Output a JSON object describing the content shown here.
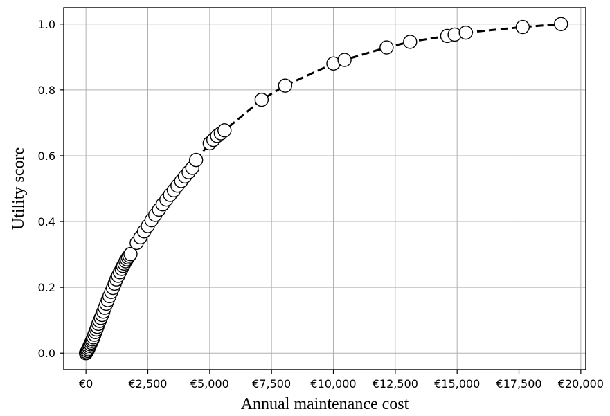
{
  "chart_data": {
    "type": "scatter",
    "title": "",
    "xlabel": "Annual maintenance cost",
    "ylabel": "Utility score",
    "xlim": [
      -900,
      20200
    ],
    "ylim": [
      -0.05,
      1.05
    ],
    "grid": true,
    "legend": "none",
    "x_ticks": [
      {
        "value": 0,
        "label": "€0"
      },
      {
        "value": 2500,
        "label": "€2,500"
      },
      {
        "value": 5000,
        "label": "€5,000"
      },
      {
        "value": 7500,
        "label": "€7,500"
      },
      {
        "value": 10000,
        "label": "€10,000"
      },
      {
        "value": 12500,
        "label": "€12,500"
      },
      {
        "value": 15000,
        "label": "€15,000"
      },
      {
        "value": 17500,
        "label": "€17,500"
      },
      {
        "value": 20000,
        "label": "€20,000"
      }
    ],
    "y_ticks": [
      {
        "value": 0.0,
        "label": "0.0"
      },
      {
        "value": 0.2,
        "label": "0.2"
      },
      {
        "value": 0.4,
        "label": "0.4"
      },
      {
        "value": 0.6,
        "label": "0.6"
      },
      {
        "value": 0.8,
        "label": "0.8"
      },
      {
        "value": 1.0,
        "label": "1.0"
      }
    ],
    "series": [
      {
        "marker": "circle",
        "marker_face_color": "#ffffff",
        "marker_edge_color": "#000000",
        "line_style": "dashed",
        "line_color": "#000000",
        "x": [
          0,
          30,
          60,
          90,
          120,
          150,
          180,
          210,
          240,
          270,
          300,
          340,
          380,
          420,
          460,
          500,
          550,
          600,
          650,
          700,
          760,
          820,
          880,
          950,
          1020,
          1090,
          1160,
          1230,
          1300,
          1370,
          1440,
          1500,
          1550,
          1600,
          1650,
          1700,
          1750,
          1800,
          2050,
          2200,
          2350,
          2500,
          2650,
          2800,
          2950,
          3100,
          3250,
          3400,
          3550,
          3700,
          3850,
          4000,
          4150,
          4300,
          4450,
          5000,
          5150,
          5300,
          5450,
          5600,
          7100,
          8050,
          10000,
          10450,
          12150,
          13100,
          14600,
          14900,
          15350,
          17650,
          19200
        ],
        "y": [
          0.0,
          0.003,
          0.007,
          0.012,
          0.017,
          0.022,
          0.027,
          0.032,
          0.037,
          0.042,
          0.048,
          0.056,
          0.064,
          0.072,
          0.08,
          0.089,
          0.098,
          0.107,
          0.116,
          0.126,
          0.138,
          0.15,
          0.161,
          0.173,
          0.186,
          0.198,
          0.211,
          0.224,
          0.235,
          0.246,
          0.256,
          0.265,
          0.272,
          0.279,
          0.285,
          0.291,
          0.296,
          0.301,
          0.335,
          0.352,
          0.37,
          0.386,
          0.404,
          0.42,
          0.436,
          0.452,
          0.467,
          0.481,
          0.495,
          0.509,
          0.523,
          0.537,
          0.55,
          0.563,
          0.587,
          0.638,
          0.648,
          0.66,
          0.668,
          0.677,
          0.77,
          0.813,
          0.88,
          0.891,
          0.929,
          0.946,
          0.964,
          0.968,
          0.974,
          0.991,
          1.0
        ]
      }
    ]
  }
}
